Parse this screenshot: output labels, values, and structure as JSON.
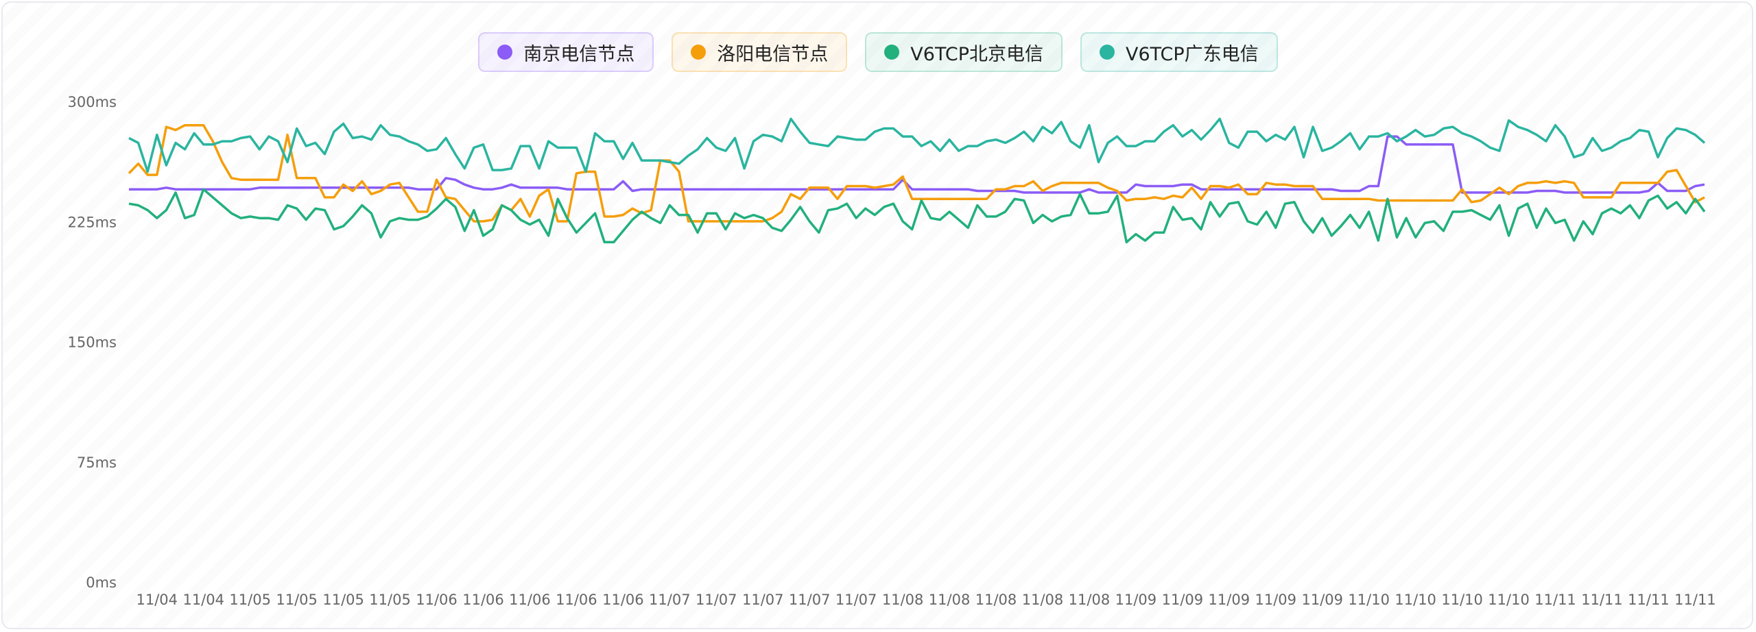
{
  "chart_data": {
    "type": "line",
    "categories": [
      null,
      null,
      null,
      "11/04",
      null,
      null,
      null,
      null,
      "11/04",
      null,
      null,
      null,
      null,
      "11/05",
      null,
      null,
      null,
      null,
      "11/05",
      null,
      null,
      null,
      null,
      "11/05",
      null,
      null,
      null,
      null,
      "11/05",
      null,
      null,
      null,
      null,
      "11/06",
      null,
      null,
      null,
      null,
      "11/06",
      null,
      null,
      null,
      null,
      "11/06",
      null,
      null,
      null,
      null,
      "11/06",
      null,
      null,
      null,
      null,
      "11/06",
      null,
      null,
      null,
      null,
      "11/07",
      null,
      null,
      null,
      null,
      "11/07",
      null,
      null,
      null,
      null,
      "11/07",
      null,
      null,
      null,
      null,
      "11/07",
      null,
      null,
      null,
      null,
      "11/07",
      null,
      null,
      null,
      null,
      "11/08",
      null,
      null,
      null,
      null,
      "11/08",
      null,
      null,
      null,
      null,
      "11/08",
      null,
      null,
      null,
      null,
      "11/08",
      null,
      null,
      null,
      null,
      "11/08",
      null,
      null,
      null,
      null,
      "11/09",
      null,
      null,
      null,
      null,
      "11/09",
      null,
      null,
      null,
      null,
      "11/09",
      null,
      null,
      null,
      null,
      "11/09",
      null,
      null,
      null,
      null,
      "11/09",
      null,
      null,
      null,
      null,
      "11/10",
      null,
      null,
      null,
      null,
      "11/10",
      null,
      null,
      null,
      null,
      "11/10",
      null,
      null,
      null,
      null,
      "11/10",
      null,
      null,
      null,
      null,
      "11/11",
      null,
      null,
      null,
      null,
      "11/11",
      null,
      null,
      null,
      null,
      "11/11",
      null,
      null,
      null,
      null,
      "11/11",
      null
    ],
    "series": [
      {
        "name": "南京电信节点",
        "color": "#8b5cf6",
        "values": [
          246,
          246,
          246,
          246,
          247,
          246,
          246,
          246,
          246,
          246,
          246,
          246,
          246,
          246,
          247,
          247,
          247,
          247,
          247,
          247,
          247,
          247,
          247,
          247,
          247,
          247,
          247,
          247,
          247,
          247,
          247,
          246,
          246,
          246,
          253,
          252,
          249,
          247,
          246,
          246,
          247,
          249,
          247,
          247,
          247,
          247,
          247,
          246,
          246,
          246,
          246,
          246,
          246,
          251,
          245,
          246,
          246,
          246,
          246,
          246,
          246,
          246,
          246,
          246,
          246,
          246,
          246,
          246,
          246,
          246,
          246,
          246,
          246,
          246,
          246,
          246,
          246,
          246,
          246,
          246,
          246,
          246,
          246,
          252,
          246,
          246,
          246,
          246,
          246,
          246,
          246,
          245,
          245,
          245,
          245,
          245,
          244,
          244,
          244,
          244,
          244,
          244,
          244,
          246,
          244,
          244,
          244,
          244,
          249,
          248,
          248,
          248,
          248,
          249,
          249,
          246,
          246,
          246,
          246,
          246,
          246,
          246,
          246,
          246,
          246,
          246,
          246,
          246,
          246,
          246,
          245,
          245,
          245,
          248,
          248,
          279,
          279,
          274,
          274,
          274,
          274,
          274,
          274,
          244,
          244,
          244,
          244,
          244,
          244,
          244,
          244,
          245,
          245,
          245,
          244,
          244,
          244,
          244,
          244,
          244,
          244,
          244,
          244,
          245,
          250,
          245,
          245,
          245,
          248,
          249
        ]
      },
      {
        "name": "洛阳电信节点",
        "color": "#f59e0b",
        "values": [
          256,
          262,
          255,
          255,
          285,
          283,
          286,
          286,
          286,
          276,
          263,
          253,
          252,
          252,
          252,
          252,
          252,
          280,
          253,
          253,
          253,
          241,
          241,
          249,
          245,
          251,
          243,
          245,
          249,
          250,
          241,
          232,
          232,
          252,
          241,
          240,
          233,
          226,
          226,
          227,
          236,
          233,
          240,
          229,
          242,
          246,
          226,
          226,
          256,
          257,
          257,
          229,
          229,
          230,
          234,
          231,
          233,
          264,
          264,
          257,
          226,
          226,
          226,
          226,
          226,
          226,
          226,
          226,
          226,
          228,
          232,
          243,
          240,
          247,
          247,
          247,
          240,
          248,
          248,
          248,
          247,
          248,
          249,
          254,
          240,
          240,
          240,
          240,
          240,
          240,
          240,
          240,
          240,
          246,
          246,
          248,
          248,
          251,
          245,
          248,
          250,
          250,
          250,
          250,
          250,
          247,
          245,
          239,
          240,
          240,
          241,
          240,
          242,
          241,
          247,
          240,
          248,
          248,
          247,
          249,
          243,
          243,
          250,
          249,
          249,
          248,
          248,
          248,
          240,
          240,
          240,
          240,
          240,
          240,
          239,
          239,
          239,
          239,
          239,
          239,
          239,
          239,
          239,
          246,
          238,
          239,
          243,
          247,
          243,
          248,
          250,
          250,
          251,
          250,
          251,
          250,
          241,
          241,
          241,
          241,
          250,
          250,
          250,
          250,
          250,
          257,
          258,
          248,
          238,
          241
        ]
      },
      {
        "name": "V6TCP北京电信",
        "color": "#22b07d",
        "values": [
          237,
          236,
          233,
          228,
          233,
          244,
          228,
          230,
          246,
          241,
          236,
          231,
          228,
          229,
          228,
          228,
          227,
          236,
          234,
          227,
          234,
          233,
          221,
          223,
          229,
          236,
          231,
          216,
          226,
          228,
          227,
          227,
          229,
          234,
          240,
          235,
          220,
          233,
          217,
          221,
          236,
          233,
          227,
          224,
          227,
          217,
          240,
          228,
          219,
          225,
          231,
          213,
          213,
          220,
          227,
          232,
          228,
          225,
          236,
          230,
          230,
          219,
          231,
          231,
          221,
          231,
          228,
          230,
          228,
          222,
          220,
          227,
          235,
          226,
          219,
          233,
          234,
          237,
          228,
          234,
          230,
          235,
          237,
          226,
          221,
          239,
          228,
          227,
          232,
          227,
          222,
          236,
          229,
          229,
          232,
          240,
          239,
          225,
          230,
          226,
          229,
          230,
          243,
          231,
          231,
          232,
          242,
          213,
          218,
          214,
          219,
          219,
          235,
          227,
          228,
          221,
          238,
          229,
          237,
          238,
          226,
          224,
          232,
          222,
          237,
          238,
          226,
          219,
          228,
          217,
          223,
          230,
          222,
          232,
          214,
          240,
          216,
          228,
          216,
          225,
          226,
          220,
          232,
          232,
          233,
          230,
          227,
          236,
          217,
          234,
          237,
          222,
          234,
          225,
          227,
          214,
          226,
          218,
          231,
          234,
          231,
          236,
          228,
          239,
          242,
          234,
          238,
          231,
          240,
          232
        ]
      },
      {
        "name": "V6TCP广东电信",
        "color": "#2ab5a0",
        "values": [
          278,
          275,
          257,
          280,
          261,
          275,
          271,
          281,
          274,
          274,
          276,
          276,
          278,
          279,
          271,
          279,
          276,
          263,
          284,
          273,
          275,
          268,
          282,
          287,
          278,
          279,
          277,
          286,
          280,
          279,
          276,
          274,
          270,
          271,
          278,
          268,
          259,
          272,
          274,
          258,
          258,
          259,
          273,
          273,
          259,
          276,
          272,
          272,
          272,
          257,
          281,
          276,
          276,
          265,
          275,
          264,
          264,
          264,
          263,
          262,
          267,
          271,
          278,
          272,
          270,
          278,
          259,
          276,
          280,
          279,
          276,
          290,
          282,
          275,
          274,
          273,
          279,
          278,
          277,
          277,
          282,
          284,
          284,
          279,
          279,
          273,
          276,
          270,
          277,
          270,
          273,
          273,
          276,
          277,
          275,
          278,
          282,
          276,
          285,
          281,
          288,
          276,
          272,
          286,
          263,
          275,
          279,
          273,
          273,
          276,
          276,
          282,
          286,
          279,
          283,
          277,
          283,
          290,
          275,
          272,
          282,
          282,
          276,
          280,
          277,
          285,
          266,
          285,
          270,
          272,
          276,
          281,
          271,
          279,
          279,
          281,
          276,
          279,
          283,
          279,
          280,
          284,
          285,
          281,
          279,
          276,
          272,
          270,
          289,
          285,
          283,
          280,
          276,
          286,
          279,
          266,
          268,
          278,
          270,
          272,
          276,
          278,
          283,
          282,
          266,
          278,
          284,
          283,
          280,
          275
        ]
      }
    ],
    "ylim": [
      0,
      300
    ],
    "yticks": [
      {
        "value": 0,
        "label": "0ms"
      },
      {
        "value": 75,
        "label": "75ms"
      },
      {
        "value": 150,
        "label": "150ms"
      },
      {
        "value": 225,
        "label": "225ms"
      },
      {
        "value": 300,
        "label": "300ms"
      }
    ],
    "grid": false
  }
}
